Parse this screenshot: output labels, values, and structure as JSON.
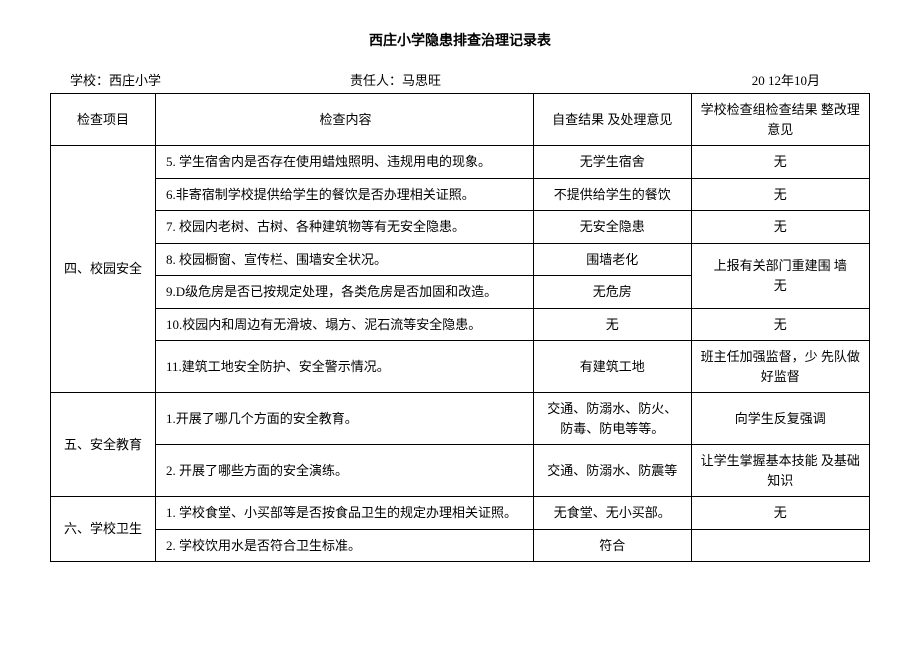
{
  "title": "西庄小学隐患排查治理记录表",
  "header": {
    "school_label": "学校：",
    "school_name": "西庄小学",
    "person_label": "责任人：",
    "person_name": "马思旺",
    "date": "20 12年10月"
  },
  "columns": {
    "category": "检查项目",
    "content": "检查内容",
    "result": "自查结果 及处理意见",
    "opinion": "学校检查组检查结果  整改理意见"
  },
  "sections": [
    {
      "category": "四、校园安全",
      "rows": [
        {
          "content": "5. 学生宿舍内是否存在使用蜡烛照明、违规用电的现象。",
          "result": "无学生宿舍",
          "opinion": "无"
        },
        {
          "content": "6.非寄宿制学校提供给学生的餐饮是否办理相关证照。",
          "result": "不提供给学生的餐饮",
          "opinion": "无"
        },
        {
          "content": "7. 校园内老树、古树、各种建筑物等有无安全隐患。",
          "result": "无安全隐患",
          "opinion": "无"
        },
        {
          "content": "8. 校园橱窗、宣传栏、围墙安全状况。",
          "result": "围墙老化",
          "opinion": ""
        },
        {
          "content": "9.D级危房是否已按规定处理，各类危房是否加固和改造。",
          "result": "无危房",
          "opinion": "上报有关部门重建围  墙\n无"
        },
        {
          "content": "10.校园内和周边有无滑坡、塌方、泥石流等安全隐患。",
          "result": "无",
          "opinion": "无"
        },
        {
          "content": "11.建筑工地安全防护、安全警示情况。",
          "result": "有建筑工地",
          "opinion": "班主任加强监督，少  先队做好监督"
        }
      ]
    },
    {
      "category": "五、安全教育",
      "rows": [
        {
          "content": "1.开展了哪几个方面的安全教育。",
          "result": "交通、防溺水、防火、防毒、防电等等。",
          "opinion": "向学生反复强调"
        },
        {
          "content": "2. 开展了哪些方面的安全演练。",
          "result": "交通、防溺水、防震等",
          "opinion": "让学生掌握基本技能  及基础知识"
        }
      ]
    },
    {
      "category": "六、学校卫生",
      "rows": [
        {
          "content": "1. 学校食堂、小买部等是否按食品卫生的规定办理相关证照。",
          "result": "无食堂、无小买部。",
          "opinion": "无"
        },
        {
          "content": "2. 学校饮用水是否符合卫生标准。",
          "result": "符合",
          "opinion": ""
        }
      ]
    }
  ]
}
